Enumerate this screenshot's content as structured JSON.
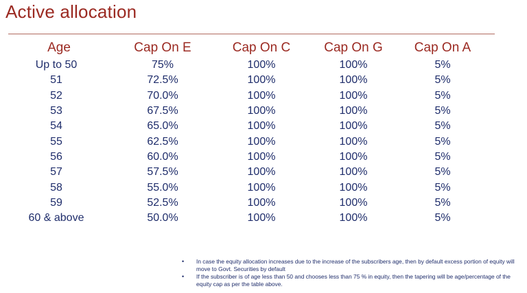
{
  "title": "Active allocation",
  "table": {
    "headers": [
      "Age",
      "Cap On E",
      "Cap On C",
      "Cap On G",
      "Cap On A"
    ],
    "rows": [
      [
        "Up to 50",
        "75%",
        "100%",
        "100%",
        "5%"
      ],
      [
        "51",
        "72.5%",
        "100%",
        "100%",
        "5%"
      ],
      [
        "52",
        "70.0%",
        "100%",
        "100%",
        "5%"
      ],
      [
        "53",
        "67.5%",
        "100%",
        "100%",
        "5%"
      ],
      [
        "54",
        "65.0%",
        "100%",
        "100%",
        "5%"
      ],
      [
        "55",
        "62.5%",
        "100%",
        "100%",
        "5%"
      ],
      [
        "56",
        "60.0%",
        "100%",
        "100%",
        "5%"
      ],
      [
        "57",
        "57.5%",
        "100%",
        "100%",
        "5%"
      ],
      [
        "58",
        "55.0%",
        "100%",
        "100%",
        "5%"
      ],
      [
        "59",
        "52.5%",
        "100%",
        "100%",
        "5%"
      ],
      [
        "60 & above",
        "50.0%",
        "100%",
        "100%",
        "5%"
      ]
    ]
  },
  "notes": [
    "In case the equity allocation increases due to the increase of the subscribers age, then by default excess portion of equity will move to Govt. Securities by default",
    "If the subscriber is of age less than 50 and chooses less than 75 % in equity, then the tapering will be age/percentage of the equity cap as per the table above."
  ],
  "colors": {
    "title": "#9b2a22",
    "header": "#9b2a22",
    "body_text": "#1f2d6b",
    "rule": "#b06a5f"
  }
}
